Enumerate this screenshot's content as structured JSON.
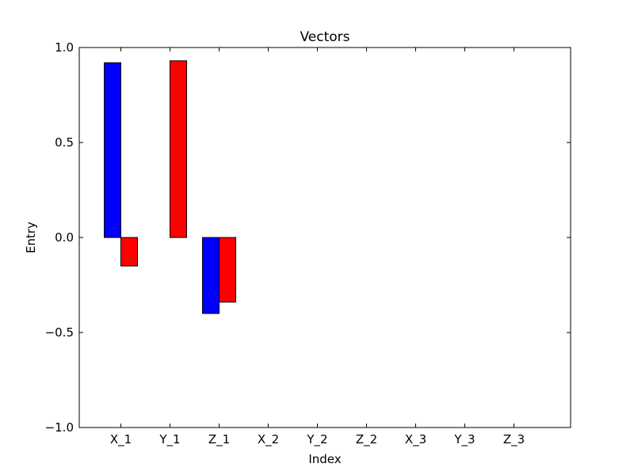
{
  "chart_data": {
    "type": "bar",
    "title": "Vectors",
    "xlabel": "Index",
    "ylabel": "Entry",
    "categories": [
      "X_1",
      "Y_1",
      "Z_1",
      "X_2",
      "Y_2",
      "Z_2",
      "X_3",
      "Y_3",
      "Z_3"
    ],
    "series": [
      {
        "color": "#0000ff",
        "values": [
          0.92,
          0.0,
          -0.4,
          0.0,
          0.0,
          0.0,
          0.0,
          0.0,
          0.0
        ]
      },
      {
        "color": "#ff0000",
        "values": [
          -0.15,
          0.93,
          -0.34,
          0.0,
          0.0,
          0.0,
          0.0,
          0.0,
          0.0
        ]
      }
    ],
    "ylim": [
      -1.0,
      1.0
    ],
    "yticks": [
      "−1.0",
      "−0.5",
      "0.0",
      "0.5",
      "1.0"
    ],
    "ytick_values": [
      -1.0,
      -0.5,
      0.0,
      0.5,
      1.0
    ],
    "grid": false,
    "legend": "none"
  }
}
